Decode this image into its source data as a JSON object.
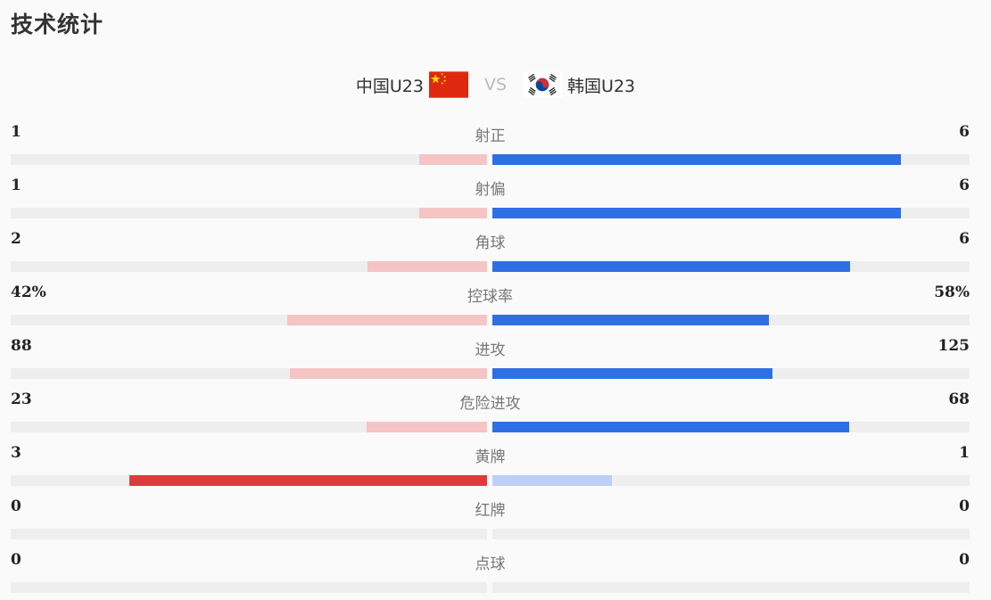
{
  "title": "技术统计",
  "match": {
    "home": "中国U23",
    "vs": "VS",
    "away": "韩国U23"
  },
  "stats": [
    {
      "label": "射正",
      "home": "1",
      "away": "6",
      "home_share": 0.143,
      "away_share": 0.857,
      "emphasis": "away"
    },
    {
      "label": "射偏",
      "home": "1",
      "away": "6",
      "home_share": 0.143,
      "away_share": 0.857,
      "emphasis": "away"
    },
    {
      "label": "角球",
      "home": "2",
      "away": "6",
      "home_share": 0.25,
      "away_share": 0.75,
      "emphasis": "away"
    },
    {
      "label": "控球率",
      "home": "42%",
      "away": "58%",
      "home_share": 0.42,
      "away_share": 0.58,
      "emphasis": "away"
    },
    {
      "label": "进攻",
      "home": "88",
      "away": "125",
      "home_share": 0.413,
      "away_share": 0.587,
      "emphasis": "away"
    },
    {
      "label": "危险进攻",
      "home": "23",
      "away": "68",
      "home_share": 0.253,
      "away_share": 0.747,
      "emphasis": "away"
    },
    {
      "label": "黄牌",
      "home": "3",
      "away": "1",
      "home_share": 0.75,
      "away_share": 0.25,
      "emphasis": "home"
    },
    {
      "label": "红牌",
      "home": "0",
      "away": "0",
      "home_share": 0,
      "away_share": 0,
      "emphasis": "none"
    },
    {
      "label": "点球",
      "home": "0",
      "away": "0",
      "home_share": 0,
      "away_share": 0,
      "emphasis": "none"
    }
  ],
  "colors": {
    "home_light": "#f5c4c4",
    "home_strong": "#e03b3b",
    "away_strong": "#2f6fe4",
    "away_light": "#bccff7",
    "track": "#eeeeee"
  }
}
